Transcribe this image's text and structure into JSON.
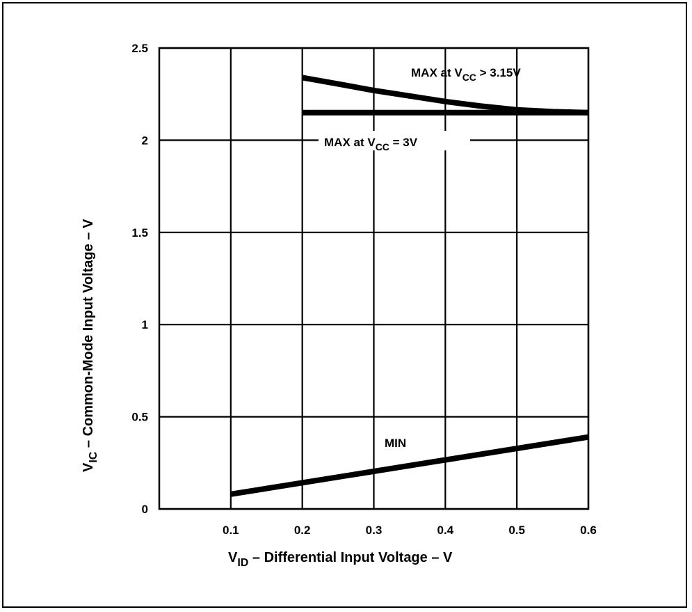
{
  "chart_data": {
    "type": "line",
    "xlabel": {
      "main": "V",
      "sub": "ID",
      "rest": " – Differential Input Voltage – V"
    },
    "ylabel": {
      "main": "V",
      "sub": "IC",
      "rest": " – Common-Mode Input Voltage – V"
    },
    "xlim": [
      0,
      0.6
    ],
    "ylim": [
      0,
      2.5
    ],
    "x_ticks": [
      {
        "value": 0.1,
        "label": "0.1"
      },
      {
        "value": 0.2,
        "label": "0.2"
      },
      {
        "value": 0.3,
        "label": "0.3"
      },
      {
        "value": 0.4,
        "label": "0.4"
      },
      {
        "value": 0.5,
        "label": "0.5"
      },
      {
        "value": 0.6,
        "label": "0.6"
      }
    ],
    "y_ticks": [
      {
        "value": 0,
        "label": "0"
      },
      {
        "value": 0.5,
        "label": "0.5"
      },
      {
        "value": 1,
        "label": "1"
      },
      {
        "value": 1.5,
        "label": "1.5"
      },
      {
        "value": 2,
        "label": "2"
      },
      {
        "value": 2.5,
        "label": "2.5"
      }
    ],
    "grid": true,
    "series": [
      {
        "id": "max-3v15",
        "label": {
          "pre": "MAX at V",
          "sub": "CC",
          "post": " > 3.15V"
        },
        "x": [
          0.2,
          0.25,
          0.3,
          0.35,
          0.4,
          0.45,
          0.5,
          0.55,
          0.6
        ],
        "y": [
          2.34,
          2.305,
          2.27,
          2.24,
          2.21,
          2.185,
          2.165,
          2.155,
          2.15
        ]
      },
      {
        "id": "max-3v",
        "label": {
          "pre": "MAX at V",
          "sub": "CC",
          "post": " = 3V"
        },
        "x": [
          0.2,
          0.6
        ],
        "y": [
          2.15,
          2.15
        ]
      },
      {
        "id": "min",
        "label": {
          "pre": "MIN",
          "sub": "",
          "post": ""
        },
        "x": [
          0.1,
          0.6
        ],
        "y": [
          0.08,
          0.39
        ]
      }
    ],
    "line_color": "#000000"
  }
}
